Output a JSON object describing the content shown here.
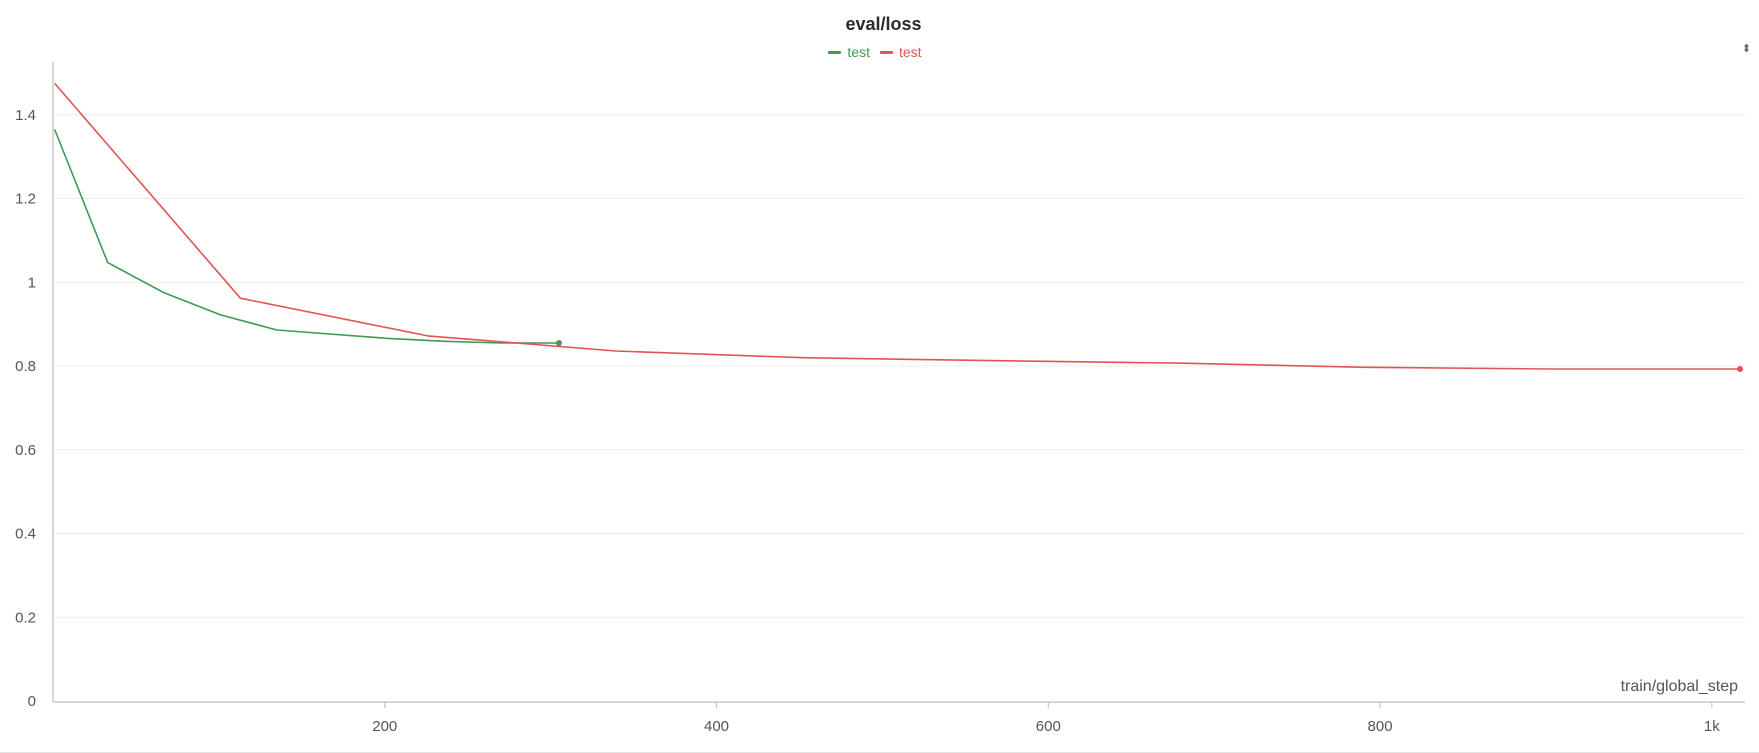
{
  "chart_data": {
    "type": "line",
    "title": "eval/loss",
    "xlabel": "train/global_step",
    "ylabel": "",
    "xlim": [
      0,
      1020
    ],
    "ylim": [
      0,
      1.55
    ],
    "x_ticks": [
      200,
      400,
      600,
      800,
      1000
    ],
    "x_tick_labels": [
      "200",
      "400",
      "600",
      "800",
      "1k"
    ],
    "y_ticks": [
      0,
      0.2,
      0.4,
      0.6,
      0.8,
      1,
      1.2,
      1.4
    ],
    "y_tick_labels": [
      "0",
      "0.2",
      "0.4",
      "0.6",
      "0.8",
      "1",
      "1.2",
      "1.4"
    ],
    "grid": true,
    "legend_position": "top-center",
    "series": [
      {
        "name": "test",
        "color": "#3e9a55",
        "x": [
          1,
          33,
          67,
          101,
          135,
          202,
          236,
          270,
          305
        ],
        "y": [
          1.365,
          1.047,
          0.975,
          0.922,
          0.886,
          0.866,
          0.859,
          0.855,
          0.855
        ]
      },
      {
        "name": "test",
        "color": "#e05554",
        "x": [
          1,
          113,
          226,
          339,
          452,
          565,
          678,
          791,
          904,
          1017
        ],
        "y": [
          1.475,
          0.962,
          0.872,
          0.836,
          0.82,
          0.813,
          0.807,
          0.797,
          0.793,
          0.793
        ]
      }
    ]
  },
  "ui": {
    "resize_icon": "expand-vertical-icon",
    "resize_glyph": "⬍"
  }
}
